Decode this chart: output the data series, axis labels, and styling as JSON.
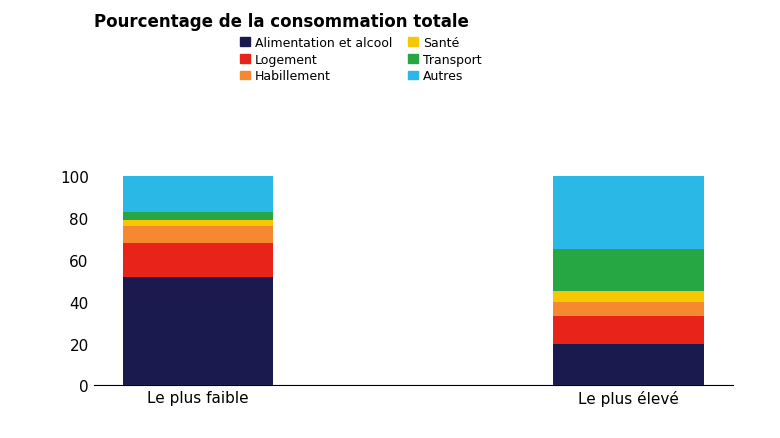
{
  "categories": [
    "Le plus faible",
    "Le plus élevé"
  ],
  "series": [
    {
      "label": "Alimentation et alcool",
      "color": "#1a1a4e",
      "values": [
        52,
        20
      ]
    },
    {
      "label": "Logement",
      "color": "#e8231a",
      "values": [
        16,
        13
      ]
    },
    {
      "label": "Habillement",
      "color": "#f4892f",
      "values": [
        8,
        7
      ]
    },
    {
      "label": "Santé",
      "color": "#f5c800",
      "values": [
        3,
        5
      ]
    },
    {
      "label": "Transport",
      "color": "#27a744",
      "values": [
        4,
        20
      ]
    },
    {
      "label": "Autres",
      "color": "#2ab8e6",
      "values": [
        17,
        35
      ]
    }
  ],
  "title": "Pourcentage de la consommation totale",
  "ylim": [
    0,
    105
  ],
  "yticks": [
    0,
    20,
    40,
    60,
    80,
    100
  ],
  "background_color": "#ffffff",
  "bar_width": 0.35,
  "title_fontsize": 12,
  "legend_fontsize": 9,
  "tick_fontsize": 11,
  "legend_order": [
    0,
    1,
    2,
    3,
    4,
    5
  ]
}
